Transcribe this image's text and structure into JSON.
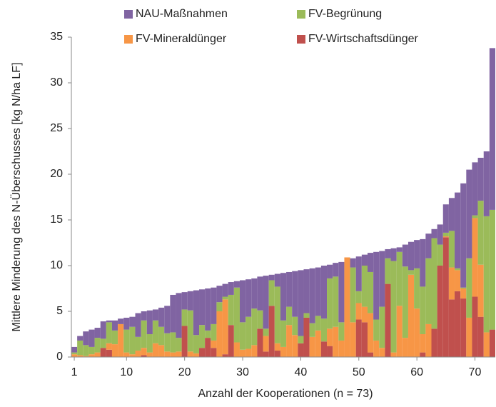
{
  "chart_data": {
    "type": "stacked-bar",
    "xlabel": "Anzahl der Kooperationen (n = 73)",
    "ylabel": "Mittlere Minderung des N-Überschusses [kg N/ha LF]",
    "x": [
      1,
      2,
      3,
      4,
      5,
      6,
      7,
      8,
      9,
      10,
      11,
      12,
      13,
      14,
      15,
      16,
      17,
      18,
      19,
      20,
      21,
      22,
      23,
      24,
      25,
      26,
      27,
      28,
      29,
      30,
      31,
      32,
      33,
      34,
      35,
      36,
      37,
      38,
      39,
      40,
      41,
      42,
      43,
      44,
      45,
      46,
      47,
      48,
      49,
      50,
      51,
      52,
      53,
      54,
      55,
      56,
      57,
      58,
      59,
      60,
      61,
      62,
      63,
      64,
      65,
      66,
      67,
      68,
      69,
      70,
      71,
      72,
      73
    ],
    "xlim": [
      0.5,
      73.5
    ],
    "xticks": [
      1,
      10,
      20,
      30,
      40,
      50,
      60,
      70
    ],
    "ylim": [
      0,
      35
    ],
    "yticks": [
      0,
      5,
      10,
      15,
      20,
      25,
      30,
      35
    ],
    "stacking": "reverse",
    "series": [
      {
        "name": "NAU-Maßnahmen",
        "color": "#8064a2",
        "values": [
          0.6,
          0.5,
          1.5,
          1.9,
          1.1,
          1.9,
          0.2,
          1.1,
          0.6,
          1.3,
          1.1,
          2.6,
          1.0,
          2.6,
          1.2,
          2.1,
          3.0,
          4.1,
          4.9,
          1.9,
          2.1,
          4.9,
          3.9,
          4.6,
          4.0,
          1.8,
          1.4,
          1.4,
          0.7,
          4.6,
          4.1,
          3.3,
          3.7,
          5.8,
          0.6,
          1.4,
          5.2,
          3.8,
          5.0,
          7.2,
          4.8,
          6.0,
          5.3,
          5.8,
          1.5,
          1.5,
          6.6,
          0,
          1.0,
          3.8,
          1.2,
          2.1,
          7.4,
          6.1,
          1.0,
          1.4,
          0.5,
          2.4,
          3.1,
          3.1,
          5.2,
          2.7,
          1.0,
          2.2,
          3.1,
          3.6,
          8.3,
          11.4,
          9.7,
          5.8,
          4.7,
          7.1,
          17.7
        ]
      },
      {
        "name": "FV-Begrünung",
        "color": "#9bbb59",
        "values": [
          0.2,
          1.6,
          1.2,
          0.8,
          1.6,
          1.0,
          2.3,
          1.5,
          0,
          2.5,
          3.0,
          1.5,
          3.0,
          2.0,
          2.5,
          2.0,
          2.0,
          2.2,
          1.5,
          1.8,
          4.5,
          2.0,
          2.5,
          0.8,
          1.8,
          1.0,
          0.3,
          3.3,
          6.0,
          3.0,
          3.5,
          4.0,
          2.0,
          0.8,
          2.8,
          6.2,
          2.9,
          2.0,
          2.0,
          0.8,
          0.5,
          1.5,
          1.6,
          2.5,
          5.5,
          5.5,
          2.0,
          0,
          6.0,
          1.3,
          4.5,
          4.5,
          2.3,
          4.5,
          2.8,
          10.0,
          5.9,
          7.8,
          0.5,
          4.4,
          5.2,
          7.2,
          9.9,
          2.3,
          0.4,
          4.0,
          0.2,
          0.1,
          6.5,
          0.3,
          7.0,
          12.7,
          13.1
        ]
      },
      {
        "name": "FV-Mineraldünger",
        "color": "#f79646",
        "values": [
          0.3,
          0.2,
          0.1,
          0.3,
          0.5,
          0,
          0.7,
          1.4,
          3.6,
          0.5,
          0.3,
          0.7,
          0.8,
          0.5,
          1.5,
          1.3,
          0.6,
          0.5,
          0.6,
          0,
          0.6,
          0.4,
          0,
          0,
          0.8,
          5.0,
          6.0,
          0,
          1.6,
          0.8,
          0.9,
          1.3,
          0,
          1.7,
          0,
          0.8,
          1.1,
          3.5,
          2.4,
          0,
          0,
          2.2,
          2.9,
          0,
          1.9,
          3.3,
          1.8,
          10.9,
          3.8,
          1.8,
          1.7,
          4.3,
          1.8,
          1.0,
          0,
          0.5,
          5.6,
          2.1,
          9.0,
          5.3,
          2.0,
          3.6,
          0,
          0,
          0.1,
          3.5,
          2.3,
          1.1,
          4.3,
          8.6,
          5.7,
          2.7,
          0
        ]
      },
      {
        "name": "FV-Wirtschaftsdünger",
        "color": "#c0504d",
        "values": [
          0,
          0,
          0,
          0,
          0,
          1.0,
          0.8,
          0,
          0,
          0,
          0,
          0,
          0.2,
          0,
          0,
          0,
          0,
          0,
          0,
          3.4,
          0,
          0,
          1.0,
          2.1,
          1.0,
          0,
          0.3,
          3.5,
          0,
          0,
          0,
          0,
          3.1,
          0.6,
          5.6,
          0.7,
          0,
          0,
          0,
          1.5,
          4.3,
          0,
          0,
          1.7,
          1.2,
          0,
          0,
          0,
          0,
          4.1,
          3.8,
          0.5,
          0,
          0,
          8.0,
          0,
          0,
          0,
          0,
          0,
          0.5,
          0,
          3.1,
          10.0,
          13.1,
          6.3,
          7.2,
          6.4,
          0,
          6.6,
          4.4,
          0,
          3.0
        ]
      }
    ]
  }
}
